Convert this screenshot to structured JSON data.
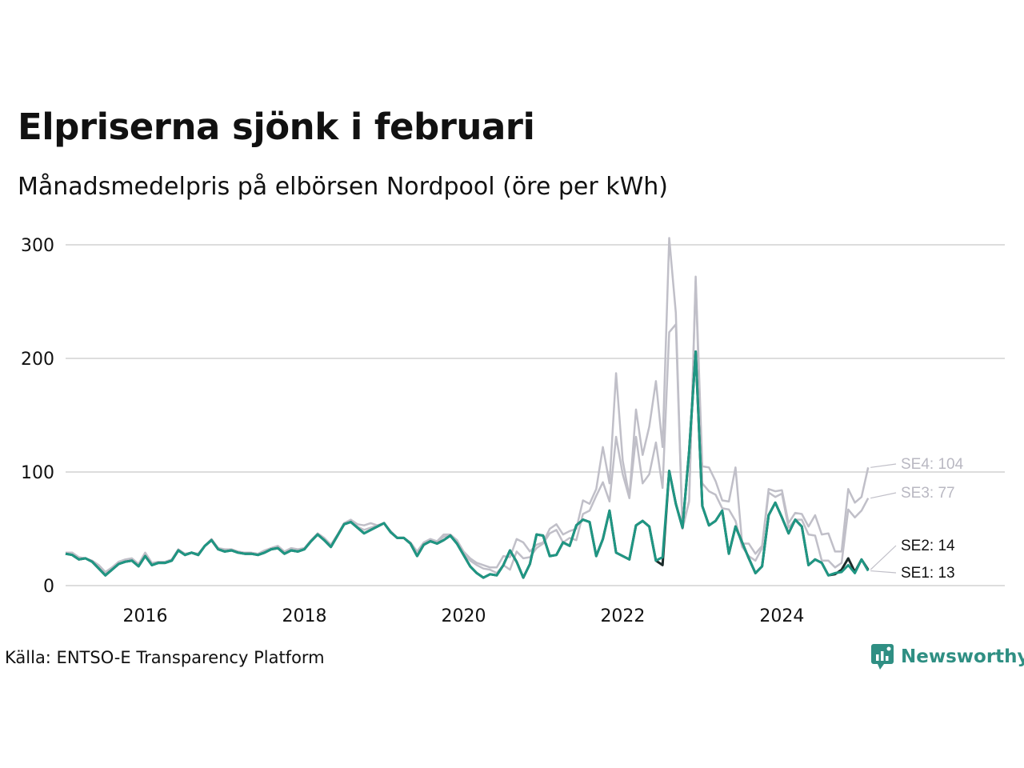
{
  "title": "Elpriserna sjönk i februari",
  "subtitle": "Månadsmedelpris på elbörsen Nordpool (öre per kWh)",
  "source": "Källa: ENTSO-E Transparency Platform",
  "brand": {
    "name": "Newsworthy",
    "icon": "newsworthy-logo-icon",
    "color": "#2f8f83"
  },
  "chart_data": {
    "type": "line",
    "title": "Elpriserna sjönk i februari",
    "subtitle": "Månadsmedelpris på elbörsen Nordpool (öre per kWh)",
    "xlabel": "",
    "ylabel": "",
    "xlim": [
      2015.0,
      2026.8
    ],
    "ylim": [
      0,
      300
    ],
    "yticks": [
      0,
      100,
      200,
      300
    ],
    "ytick_labels": [
      "0",
      "100",
      "200",
      "300"
    ],
    "xticks": [
      2016,
      2018,
      2020,
      2022,
      2024
    ],
    "xtick_labels": [
      "2016",
      "2018",
      "2020",
      "2022",
      "2024"
    ],
    "grid": "horizontal",
    "legend": "direct labels at line ends",
    "x": [
      "2015-01",
      "2015-02",
      "2015-03",
      "2015-04",
      "2015-05",
      "2015-06",
      "2015-07",
      "2015-08",
      "2015-09",
      "2015-10",
      "2015-11",
      "2015-12",
      "2016-01",
      "2016-02",
      "2016-03",
      "2016-04",
      "2016-05",
      "2016-06",
      "2016-07",
      "2016-08",
      "2016-09",
      "2016-10",
      "2016-11",
      "2016-12",
      "2017-01",
      "2017-02",
      "2017-03",
      "2017-04",
      "2017-05",
      "2017-06",
      "2017-07",
      "2017-08",
      "2017-09",
      "2017-10",
      "2017-11",
      "2017-12",
      "2018-01",
      "2018-02",
      "2018-03",
      "2018-04",
      "2018-05",
      "2018-06",
      "2018-07",
      "2018-08",
      "2018-09",
      "2018-10",
      "2018-11",
      "2018-12",
      "2019-01",
      "2019-02",
      "2019-03",
      "2019-04",
      "2019-05",
      "2019-06",
      "2019-07",
      "2019-08",
      "2019-09",
      "2019-10",
      "2019-11",
      "2019-12",
      "2020-01",
      "2020-02",
      "2020-03",
      "2020-04",
      "2020-05",
      "2020-06",
      "2020-07",
      "2020-08",
      "2020-09",
      "2020-10",
      "2020-11",
      "2020-12",
      "2021-01",
      "2021-02",
      "2021-03",
      "2021-04",
      "2021-05",
      "2021-06",
      "2021-07",
      "2021-08",
      "2021-09",
      "2021-10",
      "2021-11",
      "2021-12",
      "2022-01",
      "2022-02",
      "2022-03",
      "2022-04",
      "2022-05",
      "2022-06",
      "2022-07",
      "2022-08",
      "2022-09",
      "2022-10",
      "2022-11",
      "2022-12",
      "2023-01",
      "2023-02",
      "2023-03",
      "2023-04",
      "2023-05",
      "2023-06",
      "2023-07",
      "2023-08",
      "2023-09",
      "2023-10",
      "2023-11",
      "2023-12",
      "2024-01",
      "2024-02",
      "2024-03",
      "2024-04",
      "2024-05",
      "2024-06",
      "2024-07",
      "2024-08",
      "2024-09",
      "2024-10",
      "2024-11",
      "2024-12",
      "2025-01",
      "2025-02"
    ],
    "series": [
      {
        "name": "SE4",
        "label": "SE4: 104",
        "color": "#c0bfc8",
        "values": [
          29,
          29,
          25,
          24,
          22,
          18,
          12,
          16,
          21,
          23,
          24,
          19,
          29,
          20,
          21,
          21,
          23,
          32,
          28,
          29,
          28,
          35,
          41,
          33,
          32,
          32,
          30,
          29,
          29,
          28,
          31,
          33,
          35,
          30,
          33,
          32,
          33,
          40,
          46,
          42,
          36,
          45,
          55,
          58,
          54,
          53,
          55,
          53,
          55,
          48,
          42,
          42,
          38,
          30,
          38,
          41,
          39,
          45,
          45,
          40,
          30,
          24,
          20,
          18,
          16,
          16,
          26,
          25,
          41,
          38,
          30,
          36,
          38,
          50,
          54,
          45,
          48,
          50,
          75,
          72,
          85,
          122,
          90,
          187,
          110,
          78,
          155,
          115,
          140,
          180,
          122,
          306,
          240,
          50,
          75,
          272,
          105,
          104,
          92,
          75,
          74,
          104,
          37,
          37,
          28,
          35,
          85,
          83,
          84,
          55,
          64,
          63,
          52,
          62,
          45,
          46,
          30,
          30,
          85,
          73,
          78,
          104
        ]
      },
      {
        "name": "SE3",
        "label": "SE3: 77",
        "color": "#c0bfc8",
        "values": [
          28,
          28,
          24,
          24,
          21,
          16,
          10,
          15,
          20,
          22,
          23,
          18,
          27,
          19,
          20,
          20,
          22,
          31,
          28,
          29,
          28,
          35,
          40,
          33,
          31,
          31,
          29,
          28,
          28,
          27,
          30,
          32,
          34,
          29,
          31,
          31,
          32,
          39,
          46,
          40,
          35,
          44,
          55,
          57,
          52,
          49,
          51,
          53,
          55,
          47,
          42,
          42,
          37,
          27,
          36,
          40,
          38,
          43,
          44,
          40,
          28,
          22,
          18,
          15,
          14,
          11,
          18,
          14,
          30,
          24,
          25,
          33,
          37,
          46,
          49,
          38,
          42,
          40,
          63,
          66,
          79,
          91,
          74,
          131,
          98,
          77,
          131,
          90,
          98,
          126,
          86,
          223,
          230,
          50,
          74,
          268,
          90,
          83,
          80,
          68,
          67,
          57,
          34,
          26,
          22,
          33,
          82,
          78,
          81,
          51,
          58,
          58,
          45,
          44,
          22,
          22,
          16,
          20,
          67,
          60,
          66,
          77
        ]
      },
      {
        "name": "SE2",
        "label": "SE2: 14",
        "color": "#1c2b2a",
        "values": [
          28,
          27,
          23,
          24,
          21,
          15,
          9,
          14,
          19,
          21,
          22,
          17,
          26,
          18,
          20,
          20,
          22,
          31,
          27,
          29,
          27,
          35,
          40,
          32,
          30,
          31,
          29,
          28,
          28,
          27,
          29,
          32,
          33,
          28,
          31,
          30,
          32,
          39,
          45,
          40,
          34,
          44,
          54,
          56,
          51,
          46,
          49,
          52,
          55,
          47,
          42,
          42,
          37,
          26,
          36,
          39,
          37,
          40,
          44,
          37,
          27,
          17,
          11,
          7,
          10,
          9,
          18,
          31,
          21,
          7,
          19,
          45,
          44,
          26,
          27,
          38,
          35,
          53,
          58,
          56,
          26,
          41,
          66,
          29,
          26,
          23,
          53,
          57,
          52,
          22,
          18,
          101,
          72,
          51,
          118,
          206,
          70,
          53,
          57,
          66,
          28,
          52,
          38,
          24,
          11,
          17,
          62,
          73,
          60,
          46,
          58,
          52,
          18,
          23,
          20,
          9,
          10,
          14,
          24,
          12,
          23,
          14
        ]
      },
      {
        "name": "SE1",
        "label": "SE1: 13",
        "color": "#1f9683",
        "values": [
          28,
          27,
          23,
          24,
          21,
          15,
          9,
          14,
          19,
          21,
          22,
          17,
          26,
          18,
          20,
          20,
          22,
          31,
          27,
          29,
          27,
          35,
          40,
          32,
          30,
          31,
          29,
          28,
          28,
          27,
          29,
          32,
          33,
          28,
          31,
          30,
          32,
          39,
          45,
          40,
          34,
          44,
          54,
          56,
          51,
          46,
          49,
          52,
          55,
          47,
          42,
          42,
          37,
          26,
          36,
          39,
          37,
          40,
          44,
          37,
          27,
          17,
          11,
          7,
          10,
          9,
          18,
          31,
          21,
          7,
          19,
          45,
          44,
          26,
          27,
          38,
          35,
          53,
          58,
          56,
          26,
          41,
          66,
          29,
          26,
          23,
          53,
          57,
          52,
          22,
          25,
          101,
          72,
          51,
          118,
          206,
          70,
          53,
          57,
          66,
          28,
          52,
          38,
          24,
          11,
          17,
          62,
          73,
          60,
          46,
          58,
          52,
          18,
          23,
          20,
          9,
          11,
          12,
          18,
          11,
          23,
          13
        ]
      }
    ]
  }
}
